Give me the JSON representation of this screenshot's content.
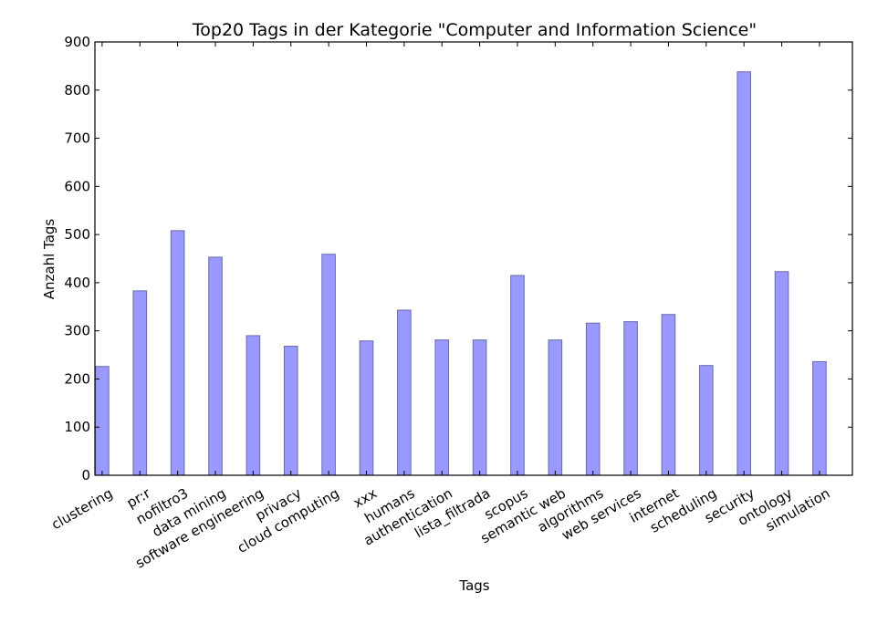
{
  "chart_data": {
    "type": "bar",
    "title": "Top20 Tags in der Kategorie \"Computer and Information Science\"",
    "xlabel": "Tags",
    "ylabel": "Anzahl Tags",
    "ylim": [
      0,
      900
    ],
    "yticks": [
      0,
      100,
      200,
      300,
      400,
      500,
      600,
      700,
      800,
      900
    ],
    "grid": false,
    "categories": [
      "clustering",
      "pr:r",
      "nofiltro3",
      "data mining",
      "software engineering",
      "privacy",
      "cloud computing",
      "xxx",
      "humans",
      "authentication",
      "lista_filtrada",
      "scopus",
      "semantic web",
      "algorithms",
      "web services",
      "internet",
      "scheduling",
      "security",
      "ontology",
      "simulation"
    ],
    "values": [
      226,
      383,
      508,
      453,
      290,
      268,
      459,
      279,
      343,
      281,
      281,
      415,
      281,
      316,
      319,
      334,
      228,
      838,
      423,
      236
    ],
    "bar_color": "#9999ff",
    "edge_color": "#6a6aa8"
  }
}
